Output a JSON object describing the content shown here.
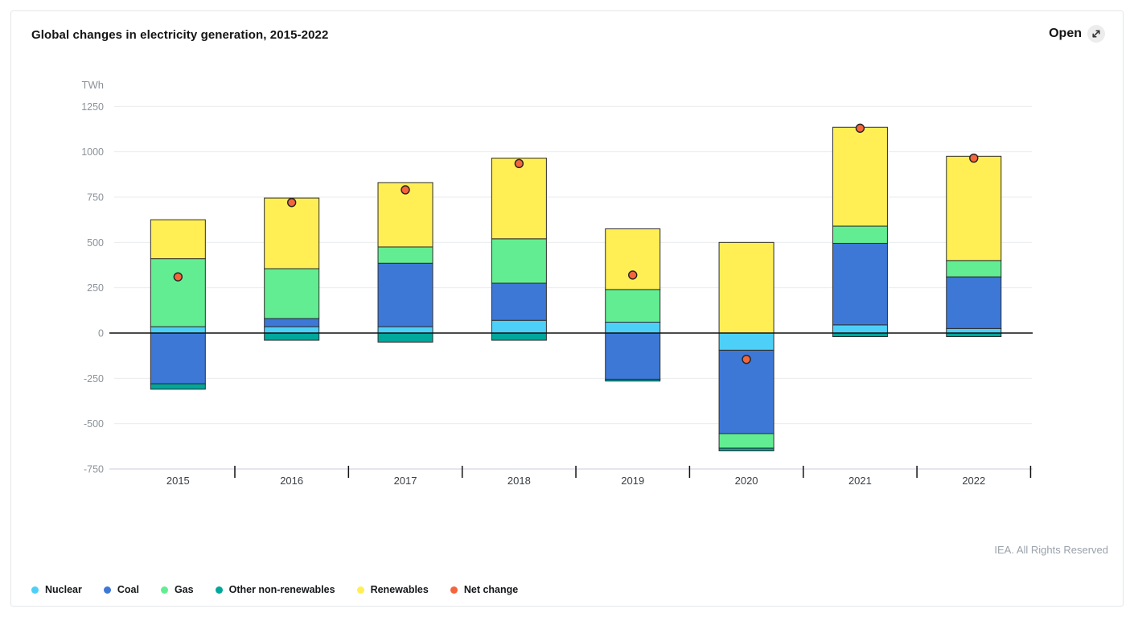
{
  "header": {
    "open_label": "Open"
  },
  "footer": {
    "copyright": "IEA. All Rights Reserved"
  },
  "chart_data": {
    "type": "bar",
    "stacked": true,
    "title": "Global changes in electricity generation, 2015-2022",
    "unit": "TWh",
    "categories": [
      "2015",
      "2016",
      "2017",
      "2018",
      "2019",
      "2020",
      "2021",
      "2022"
    ],
    "series": [
      {
        "name": "Nuclear",
        "color": "#4DD0F7",
        "values": [
          35,
          35,
          35,
          70,
          60,
          -95,
          45,
          25
        ]
      },
      {
        "name": "Coal",
        "color": "#3D78D7",
        "values": [
          -280,
          45,
          350,
          205,
          -255,
          -460,
          450,
          285
        ]
      },
      {
        "name": "Gas",
        "color": "#63ED92",
        "values": [
          375,
          275,
          90,
          245,
          180,
          -80,
          95,
          90
        ]
      },
      {
        "name": "Other non-renewables",
        "color": "#00A79B",
        "values": [
          -30,
          -40,
          -50,
          -40,
          -10,
          -15,
          -20,
          -20
        ]
      },
      {
        "name": "Renewables",
        "color": "#FFEF55",
        "values": [
          215,
          390,
          355,
          445,
          335,
          500,
          545,
          575
        ]
      }
    ],
    "net_change": {
      "name": "Net change",
      "color": "#F4653C",
      "values": [
        310,
        720,
        790,
        935,
        320,
        -145,
        1130,
        965
      ]
    },
    "ylim": [
      -750,
      1250
    ],
    "ytick_step": 250,
    "grid": "horizontal",
    "legend_position": "bottom-left",
    "style": {
      "bar_border": "#2d2d2d",
      "gridline": "#e9ebee",
      "zero_line": "#111111",
      "axis_line": "#d3d8e0",
      "tick": "#111111",
      "ytick_text": "#8b9299",
      "xtick_text": "#3a4046",
      "dot_border": "#222222"
    }
  }
}
